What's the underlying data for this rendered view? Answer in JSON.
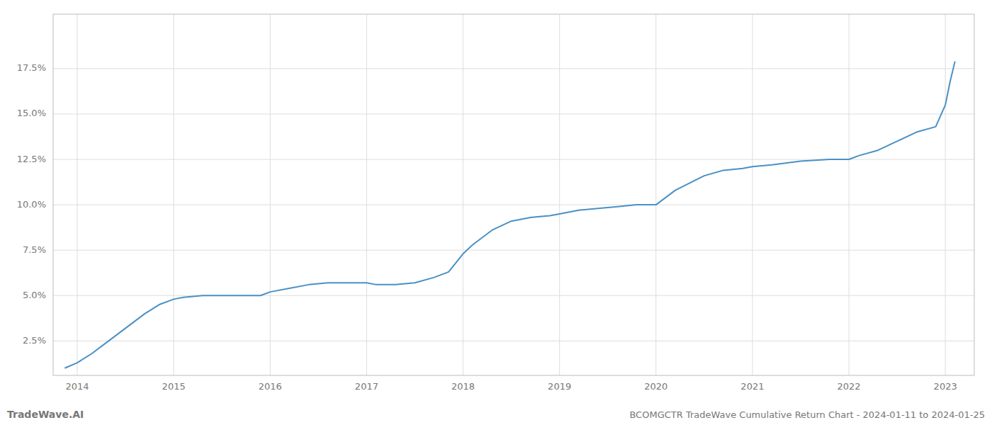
{
  "chart_data": {
    "type": "line",
    "title": "BCOMGCTR TradeWave Cumulative Return Chart - 2024-01-11 to 2024-01-25",
    "annotations": [
      "TradeWave.AI"
    ],
    "color": "#4a90c4",
    "grid": true,
    "x": [
      2013.87,
      2014.0,
      2014.15,
      2014.3,
      2014.5,
      2014.7,
      2014.85,
      2015.0,
      2015.1,
      2015.3,
      2015.5,
      2015.7,
      2015.9,
      2016.0,
      2016.2,
      2016.4,
      2016.6,
      2016.8,
      2017.0,
      2017.1,
      2017.3,
      2017.5,
      2017.7,
      2017.85,
      2018.0,
      2018.1,
      2018.3,
      2018.5,
      2018.7,
      2018.9,
      2019.0,
      2019.2,
      2019.4,
      2019.6,
      2019.8,
      2020.0,
      2020.2,
      2020.5,
      2020.7,
      2020.9,
      2021.0,
      2021.2,
      2021.5,
      2021.8,
      2022.0,
      2022.1,
      2022.3,
      2022.5,
      2022.7,
      2022.9,
      2023.0,
      2023.05,
      2023.1
    ],
    "values": [
      0.01,
      0.013,
      0.018,
      0.024,
      0.032,
      0.04,
      0.045,
      0.048,
      0.049,
      0.05,
      0.05,
      0.05,
      0.05,
      0.052,
      0.054,
      0.056,
      0.057,
      0.057,
      0.057,
      0.056,
      0.056,
      0.057,
      0.06,
      0.063,
      0.073,
      0.078,
      0.086,
      0.091,
      0.093,
      0.094,
      0.095,
      0.097,
      0.098,
      0.099,
      0.1,
      0.1,
      0.108,
      0.116,
      0.119,
      0.12,
      0.121,
      0.122,
      0.124,
      0.125,
      0.125,
      0.127,
      0.13,
      0.135,
      0.14,
      0.143,
      0.155,
      0.168,
      0.179
    ],
    "xlim": [
      2013.75,
      2023.3
    ],
    "xticks": [
      2014,
      2015,
      2016,
      2017,
      2018,
      2019,
      2020,
      2021,
      2022,
      2023
    ],
    "ylim": [
      0.006,
      0.205
    ],
    "yticks": [
      {
        "value": 0.025,
        "label": "2.5%"
      },
      {
        "value": 0.05,
        "label": "5.0%"
      },
      {
        "value": 0.075,
        "label": "7.5%"
      },
      {
        "value": 0.1,
        "label": "10.0%"
      },
      {
        "value": 0.125,
        "label": "12.5%"
      },
      {
        "value": 0.15,
        "label": "15.0%"
      },
      {
        "value": 0.175,
        "label": "17.5%"
      }
    ]
  }
}
